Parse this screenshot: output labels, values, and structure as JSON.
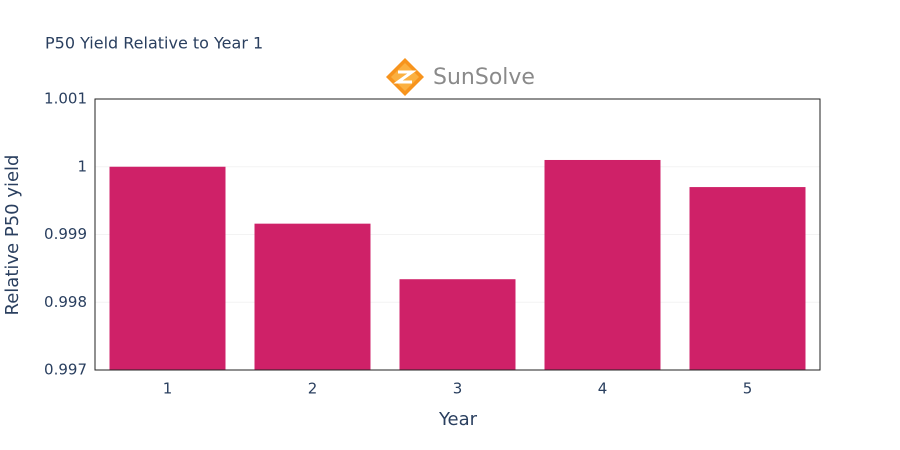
{
  "chart_data": {
    "type": "bar",
    "title": "P50 Yield Relative to Year 1",
    "logo": "SunSolve",
    "x_label": "Year",
    "y_label": "Relative P50 yield",
    "categories": [
      "1",
      "2",
      "3",
      "4",
      "5"
    ],
    "values": [
      1.0,
      0.99916,
      0.99834,
      1.0001,
      0.9997
    ],
    "color": "#cf2168",
    "ylim": [
      0.997,
      1.001
    ],
    "yticks": [
      0.997,
      0.998,
      0.999,
      1,
      1.001
    ],
    "grid": true
  }
}
